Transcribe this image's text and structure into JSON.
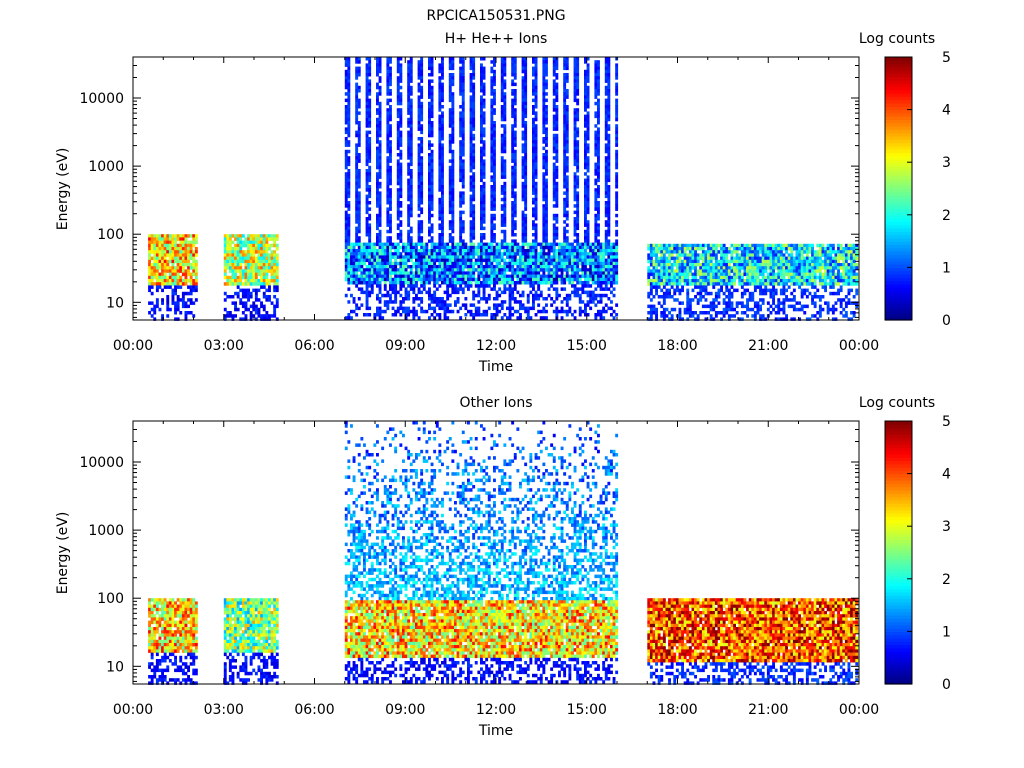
{
  "figure_title": "RPCICA150531.PNG",
  "colorscale": {
    "name": "jet",
    "stops": [
      "#00007f",
      "#0000ff",
      "#007fff",
      "#00ffff",
      "#7fff7f",
      "#ffff00",
      "#ff7f00",
      "#ff0000",
      "#7f0000"
    ]
  },
  "chart_data": [
    {
      "type": "heatmap",
      "title": "H+ He++ Ions",
      "xlabel": "Time",
      "ylabel": "Energy (eV)",
      "x_ticks": [
        "00:00",
        "03:00",
        "06:00",
        "09:00",
        "12:00",
        "15:00",
        "18:00",
        "21:00",
        "00:00"
      ],
      "xlim_hours": [
        0,
        24
      ],
      "y_scale": "log",
      "y_ticks": [
        "10",
        "100",
        "1000",
        "10000"
      ],
      "ylim": [
        5.5,
        40000
      ],
      "colorbar": {
        "label": "Log counts",
        "ticks": [
          "0",
          "1",
          "2",
          "3",
          "4",
          "5"
        ],
        "range": [
          0,
          5
        ]
      },
      "segments": [
        {
          "start_hour": 0.5,
          "end_hour": 2.1,
          "emin": 6,
          "emax": 100,
          "core_emin": 18,
          "core_emax": 100,
          "core_level": 3.3,
          "sparse_level": 0.4,
          "mode": "dense"
        },
        {
          "start_hour": 3.0,
          "end_hour": 4.8,
          "emin": 6,
          "emax": 100,
          "core_emin": 18,
          "core_emax": 100,
          "core_level": 2.8,
          "sparse_level": 0.4,
          "mode": "dense"
        },
        {
          "start_hour": 7.0,
          "end_hour": 16.0,
          "emin": 6,
          "emax": 40000,
          "core_emin": 20,
          "core_emax": 80,
          "core_level": 1.3,
          "sparse_level": 0.5,
          "mode": "striped"
        },
        {
          "start_hour": 17.0,
          "end_hour": 23.9,
          "emin": 6,
          "emax": 100,
          "core_emin": 18,
          "core_emax": 80,
          "core_level": 1.8,
          "sparse_level": 0.6,
          "mode": "dense"
        }
      ]
    },
    {
      "type": "heatmap",
      "title": "Other Ions",
      "xlabel": "Time",
      "ylabel": "Energy (eV)",
      "x_ticks": [
        "00:00",
        "03:00",
        "06:00",
        "09:00",
        "12:00",
        "15:00",
        "18:00",
        "21:00",
        "00:00"
      ],
      "xlim_hours": [
        0,
        24
      ],
      "y_scale": "log",
      "y_ticks": [
        "10",
        "100",
        "1000",
        "10000"
      ],
      "ylim": [
        5.5,
        40000
      ],
      "colorbar": {
        "label": "Log counts",
        "ticks": [
          "0",
          "1",
          "2",
          "3",
          "4",
          "5"
        ],
        "range": [
          0,
          5
        ]
      },
      "segments": [
        {
          "start_hour": 0.5,
          "end_hour": 2.1,
          "emin": 6,
          "emax": 100,
          "core_emin": 16,
          "core_emax": 100,
          "core_level": 3.3,
          "sparse_level": 0.4,
          "mode": "dense"
        },
        {
          "start_hour": 3.0,
          "end_hour": 4.8,
          "emin": 6,
          "emax": 100,
          "core_emin": 16,
          "core_emax": 100,
          "core_level": 2.5,
          "sparse_level": 0.4,
          "mode": "dense"
        },
        {
          "start_hour": 7.0,
          "end_hour": 16.0,
          "emin": 6,
          "emax": 40000,
          "core_emin": 14,
          "core_emax": 100,
          "core_level": 3.3,
          "sparse_level": 0.4,
          "mode": "scattered"
        },
        {
          "start_hour": 17.0,
          "end_hour": 23.9,
          "emin": 6,
          "emax": 100,
          "core_emin": 12,
          "core_emax": 100,
          "core_level": 4.0,
          "sparse_level": 0.6,
          "mode": "dense"
        }
      ]
    }
  ]
}
